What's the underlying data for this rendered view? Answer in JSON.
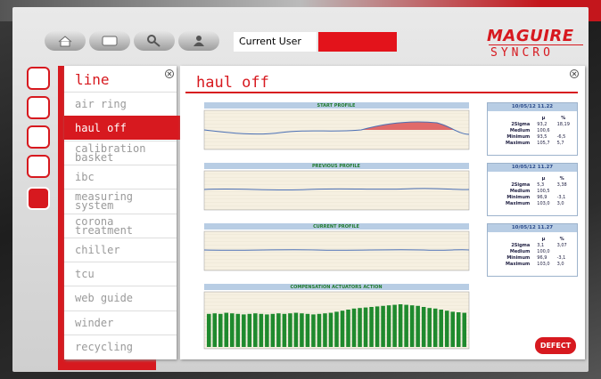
{
  "header": {
    "user_label": "Current User",
    "logo": "MAGUIRE",
    "logo_sub": "SYNCRO"
  },
  "menu": {
    "title": "line",
    "items": [
      "air ring",
      "haul off",
      "calibration basket",
      "ibc",
      "measuring system",
      "corona treatment",
      "chiller",
      "tcu",
      "web guide",
      "winder",
      "recycling"
    ],
    "active": 1
  },
  "panel": {
    "title": "haul off",
    "button": "DEFECT"
  },
  "charts": [
    {
      "title": "START PROFILE"
    },
    {
      "title": "PREVIOUS PROFILE"
    },
    {
      "title": "CURRENT PROFILE"
    },
    {
      "title": "COMPENSATION ACTUATORS ACTION",
      "ylim": [
        0,
        100
      ],
      "color": "#1f8a2e",
      "values": [
        62,
        63,
        62,
        64,
        63,
        62,
        61,
        62,
        63,
        62,
        61,
        62,
        63,
        62,
        63,
        64,
        63,
        62,
        61,
        62,
        63,
        64,
        66,
        68,
        70,
        72,
        73,
        74,
        75,
        76,
        77,
        78,
        79,
        80,
        79,
        78,
        77,
        75,
        73,
        72,
        70,
        68,
        66,
        65,
        64
      ]
    }
  ],
  "stats": [
    {
      "timestamp": "10/05/12 11.22",
      "columns": [
        "µ",
        "%"
      ],
      "rows": [
        [
          "2Sigma",
          "93,2",
          "18,19"
        ],
        [
          "Medium",
          "100,6"
        ],
        [
          "Minimum",
          "93,5",
          "-6,5"
        ],
        [
          "Maximum",
          "105,7",
          "5,7"
        ]
      ]
    },
    {
      "timestamp": "10/05/12 11.27",
      "columns": [
        "µ",
        "%"
      ],
      "rows": [
        [
          "2Sigma",
          "5,3",
          "3,38"
        ],
        [
          "Medium",
          "100,5"
        ],
        [
          "Minimum",
          "96,9",
          "-3,1"
        ],
        [
          "Maximum",
          "103,0",
          "3,0"
        ]
      ]
    },
    {
      "timestamp": "10/05/12 11.27",
      "columns": [
        "µ",
        "%"
      ],
      "rows": [
        [
          "2Sigma",
          "3,1",
          "3,07"
        ],
        [
          "Medium",
          "100,0"
        ],
        [
          "Minimum",
          "96,9",
          "-3,1"
        ],
        [
          "Maximum",
          "103,0",
          "3,0"
        ]
      ]
    }
  ]
}
